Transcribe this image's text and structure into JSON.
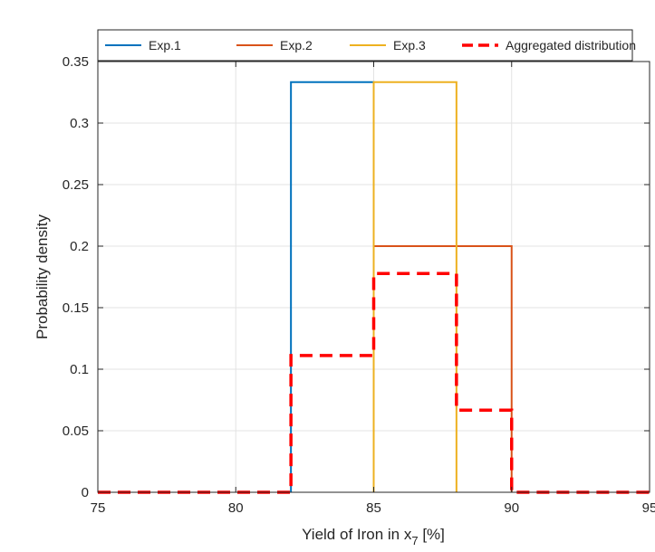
{
  "chart_data": {
    "type": "line",
    "xlabel": "Yield of Iron in x",
    "xlabel_subscript": "7",
    "xlabel_unit": " [%]",
    "ylabel": "Probability density",
    "xlim": [
      75,
      95
    ],
    "ylim": [
      0,
      0.35
    ],
    "x_ticks": [
      75,
      80,
      85,
      90,
      95
    ],
    "y_ticks": [
      0,
      0.05,
      0.1,
      0.15,
      0.2,
      0.25,
      0.3,
      0.35
    ],
    "x_tick_labels": [
      "75",
      "80",
      "85",
      "90",
      "95"
    ],
    "y_tick_labels": [
      "0",
      "0.05",
      "0.1",
      "0.15",
      "0.2",
      "0.25",
      "0.3",
      "0.35"
    ],
    "grid": true,
    "legend_position": "top",
    "series": [
      {
        "name": "Exp.1",
        "color": "#0072BD",
        "style": "solid",
        "points": [
          [
            82,
            0
          ],
          [
            82,
            0.3333
          ],
          [
            85,
            0.3333
          ],
          [
            85,
            0
          ]
        ]
      },
      {
        "name": "Exp.2",
        "color": "#D95319",
        "style": "solid",
        "points": [
          [
            85,
            0
          ],
          [
            85,
            0.2
          ],
          [
            90,
            0.2
          ],
          [
            90,
            0
          ]
        ]
      },
      {
        "name": "Exp.3",
        "color": "#EDB120",
        "style": "solid",
        "points": [
          [
            85,
            0
          ],
          [
            85,
            0.3333
          ],
          [
            88,
            0.3333
          ],
          [
            88,
            0
          ]
        ]
      },
      {
        "name": "Aggregated distribution",
        "color": "#FF0000",
        "style": "dashed",
        "points": [
          [
            75,
            0
          ],
          [
            82,
            0
          ],
          [
            82,
            0.1111
          ],
          [
            85,
            0.1111
          ],
          [
            85,
            0.1778
          ],
          [
            88,
            0.1778
          ],
          [
            88,
            0.0667
          ],
          [
            90,
            0.0667
          ],
          [
            90,
            0
          ],
          [
            95,
            0
          ]
        ]
      }
    ]
  }
}
